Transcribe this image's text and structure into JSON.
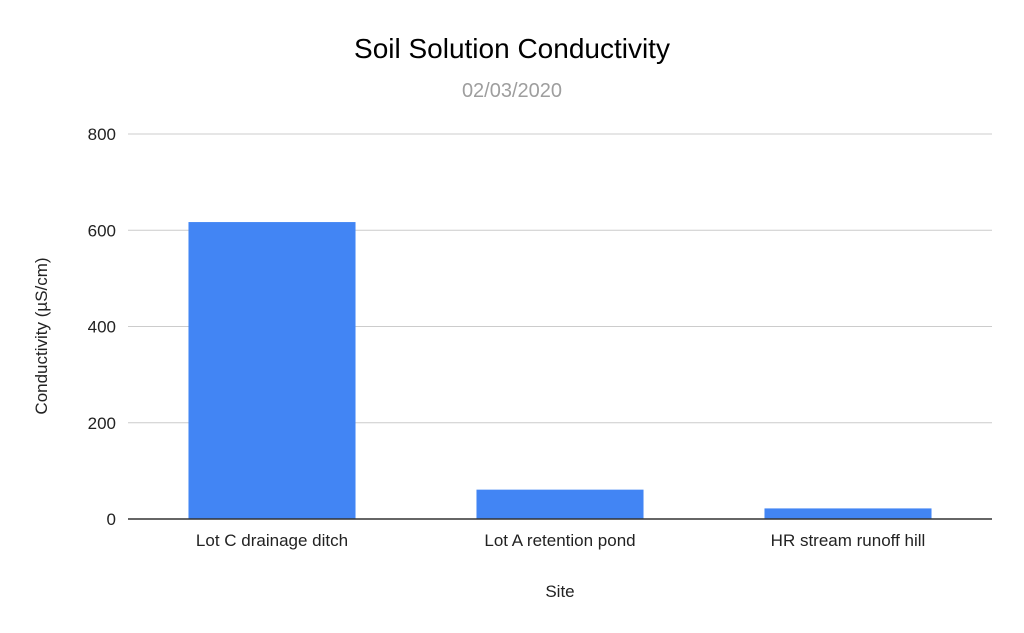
{
  "chart_data": {
    "type": "bar",
    "title": "Soil Solution Conductivity",
    "subtitle": "02/03/2020",
    "xlabel": "Site",
    "ylabel": "Conductivity (µS/cm)",
    "categories": [
      "Lot C drainage ditch",
      "Lot A retention pond",
      "HR stream runoff hill"
    ],
    "values": [
      617,
      61,
      22
    ],
    "ylim": [
      0,
      800
    ],
    "yticks": [
      0,
      200,
      400,
      600,
      800
    ],
    "grid": true,
    "legend": "none",
    "bar_color": "#4285f4",
    "grid_color": "#cccccc",
    "axis_color": "#333333"
  }
}
